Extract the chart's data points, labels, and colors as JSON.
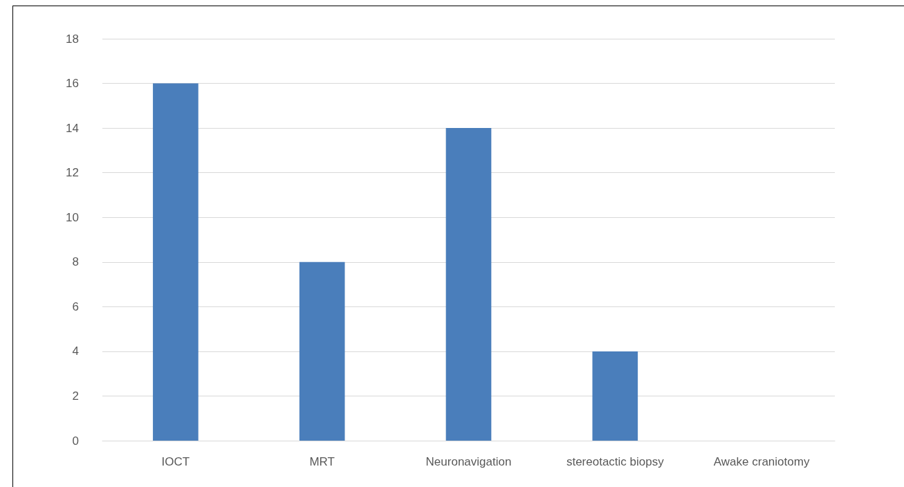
{
  "chart_data": {
    "type": "bar",
    "categories": [
      "IOCT",
      "MRT",
      "Neuronavigation",
      "stereotactic biopsy",
      "Awake craniotomy"
    ],
    "values": [
      16,
      8,
      14,
      4,
      0
    ],
    "color": "#4a7ebb",
    "ylim": [
      0,
      18
    ],
    "yticks": [
      0,
      2,
      4,
      6,
      8,
      10,
      12,
      14,
      16,
      18
    ],
    "grid": "y"
  }
}
